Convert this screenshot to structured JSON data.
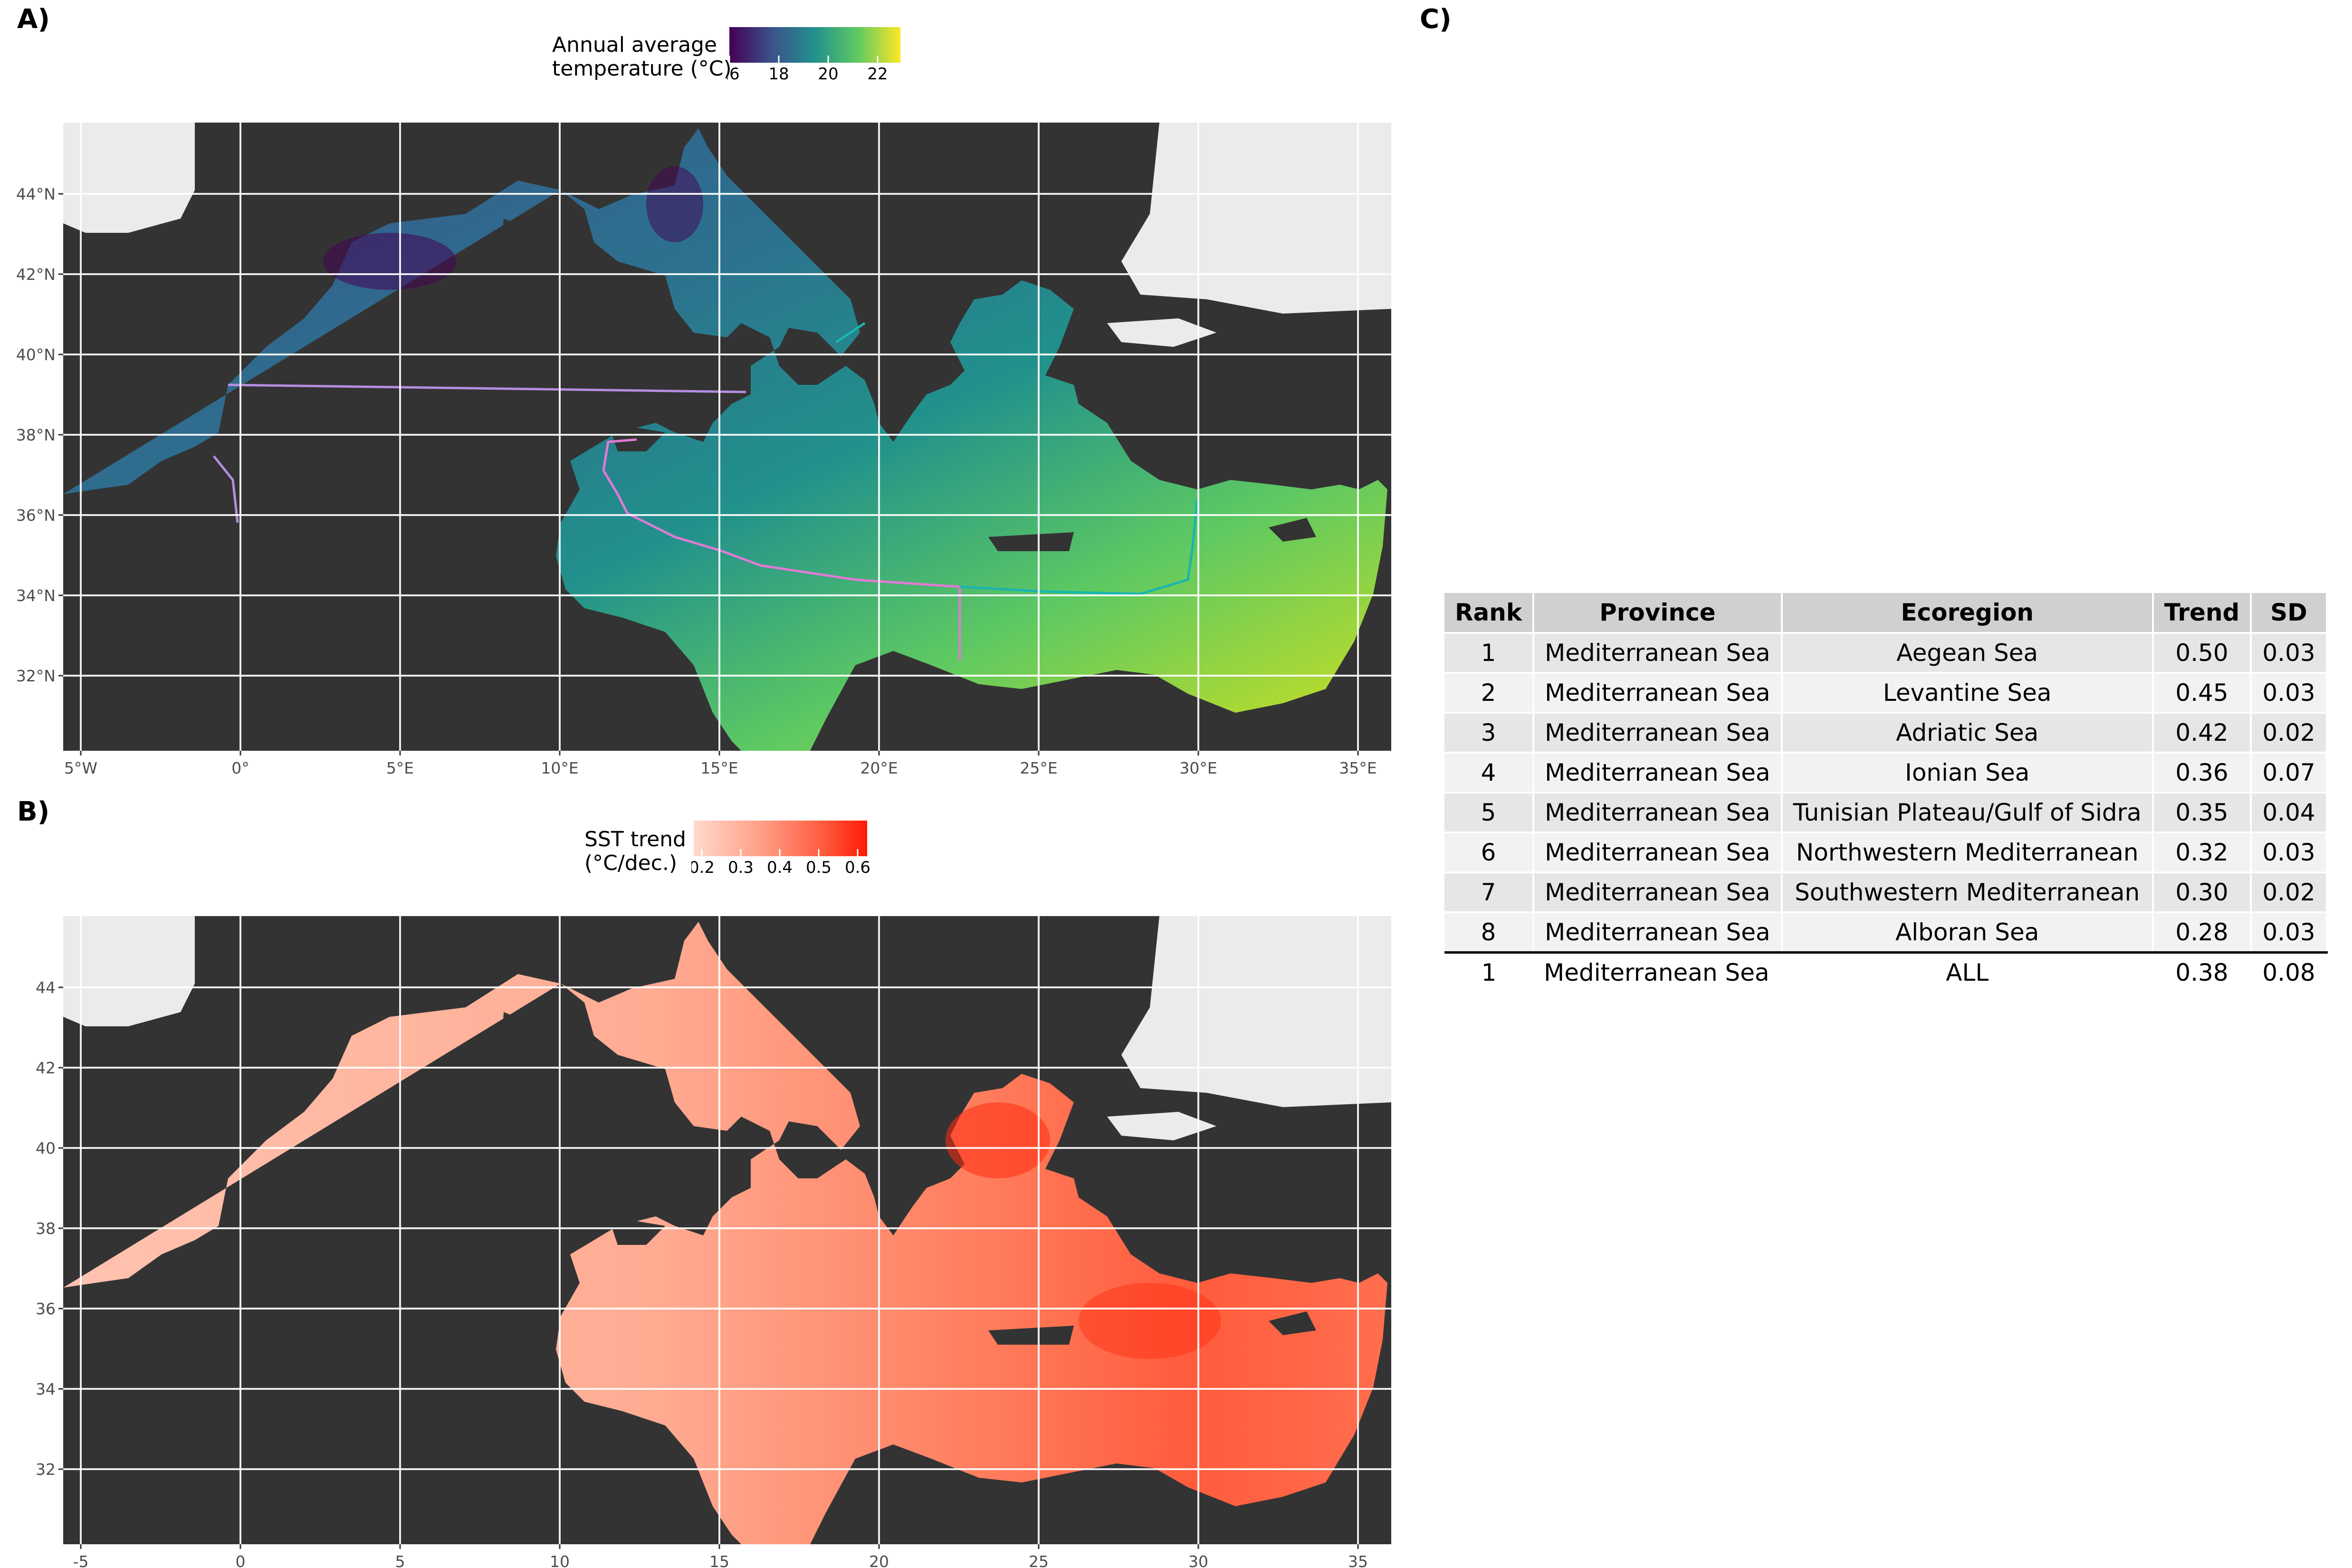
{
  "panels": {
    "a_label": "A)",
    "b_label": "B)",
    "c_label": "C)"
  },
  "map_a": {
    "legend_title_line1": "Annual average",
    "legend_title_line2": "temperature (°C)",
    "legend_ticks": [
      "16",
      "18",
      "20",
      "22"
    ],
    "legend_colors": [
      "#440154",
      "#3b528b",
      "#21918c",
      "#5ec962",
      "#fde725"
    ],
    "x_ticks": [
      "5°W",
      "0°",
      "5°E",
      "10°E",
      "15°E",
      "20°E",
      "25°E",
      "30°E",
      "35°E"
    ],
    "y_ticks": [
      "44°N",
      "42°N",
      "40°N",
      "38°N",
      "36°N",
      "34°N",
      "32°N"
    ]
  },
  "map_b": {
    "legend_title_line1": "SST trend",
    "legend_title_line2": "(°C/dec.)",
    "legend_ticks": [
      "0.2",
      "0.3",
      "0.4",
      "0.5",
      "0.6"
    ],
    "legend_colors": [
      "#ffd9cc",
      "#ff9d85",
      "#ff6a4d",
      "#ff2a10"
    ],
    "x_ticks": [
      "-5",
      "0",
      "5",
      "10",
      "15",
      "20",
      "25",
      "30",
      "35"
    ],
    "y_ticks": [
      "44",
      "42",
      "40",
      "38",
      "36",
      "34",
      "32"
    ]
  },
  "colors": {
    "land": "#333333",
    "outside": "#ebebeb",
    "grid": "#ffffff",
    "province_line_west": "#b48ee0",
    "province_line_central": "#e07ad4",
    "province_line_east": "#19b5b0"
  },
  "table": {
    "headers": [
      "Rank",
      "Province",
      "Ecoregion",
      "Trend",
      "SD"
    ],
    "rows": [
      [
        "1",
        "Mediterranean Sea",
        "Aegean Sea",
        "0.50",
        "0.03"
      ],
      [
        "2",
        "Mediterranean Sea",
        "Levantine Sea",
        "0.45",
        "0.03"
      ],
      [
        "3",
        "Mediterranean Sea",
        "Adriatic Sea",
        "0.42",
        "0.02"
      ],
      [
        "4",
        "Mediterranean Sea",
        "Ionian Sea",
        "0.36",
        "0.07"
      ],
      [
        "5",
        "Mediterranean Sea",
        "Tunisian Plateau/Gulf of Sidra",
        "0.35",
        "0.04"
      ],
      [
        "6",
        "Mediterranean Sea",
        "Northwestern Mediterranean",
        "0.32",
        "0.03"
      ],
      [
        "7",
        "Mediterranean Sea",
        "Southwestern Mediterranean",
        "0.30",
        "0.02"
      ],
      [
        "8",
        "Mediterranean Sea",
        "Alboran Sea",
        "0.28",
        "0.03"
      ]
    ],
    "total": [
      "1",
      "Mediterranean Sea",
      "ALL",
      "0.38",
      "0.08"
    ]
  }
}
